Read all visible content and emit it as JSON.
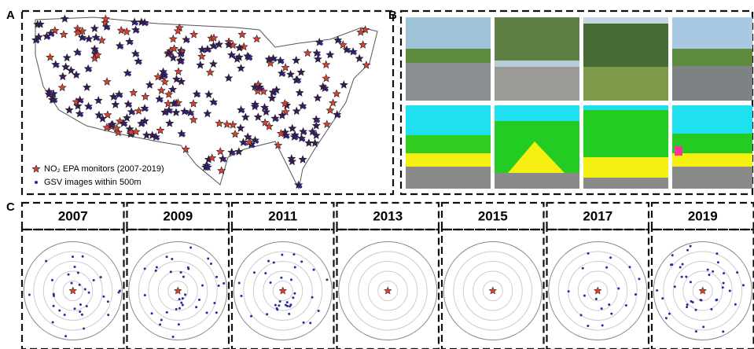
{
  "panels": {
    "A": {
      "label": "A",
      "legend": [
        "NO₂ EPA monitors (2007-2019)",
        "GSV images within 500m"
      ]
    },
    "B": {
      "label": "B"
    },
    "C": {
      "label": "C",
      "years": [
        "2007",
        "2009",
        "2011",
        "2013",
        "2015",
        "2017",
        "2019"
      ]
    }
  }
}
